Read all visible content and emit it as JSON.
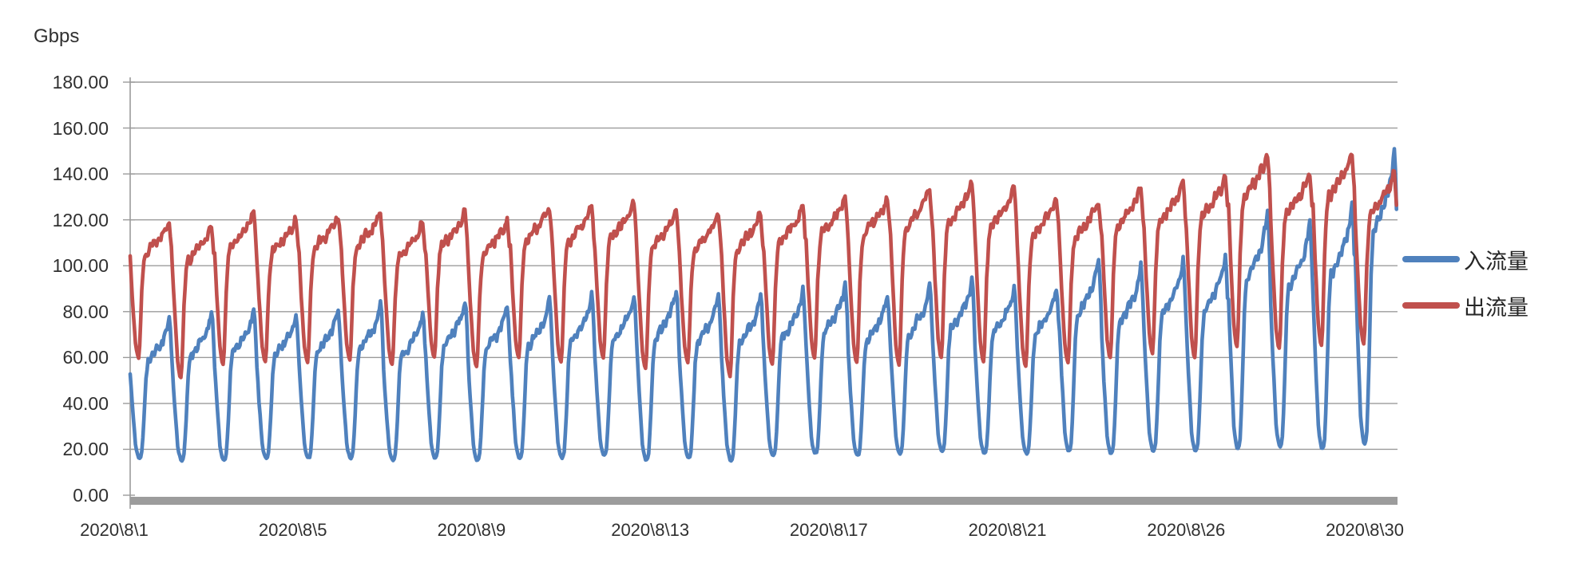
{
  "chart_data": {
    "type": "line",
    "title": "",
    "unit_label": "Gbps",
    "ylabel": "Gbps",
    "xlabel": "",
    "ylim": [
      0,
      180
    ],
    "ytick_step": 20,
    "grid": "horizontal",
    "legend_position": "right",
    "x_range_days": 30,
    "last_day_end_fraction": 0.99,
    "noise_amplitude": 2.2,
    "y_tick_labels": [
      "180.00",
      "160.00",
      "140.00",
      "120.00",
      "100.00",
      "80.00",
      "60.00",
      "40.00",
      "20.00",
      "0.00"
    ],
    "x_tick_labels": [
      "2020\\8\\1",
      "2020\\8\\5",
      "2020\\8\\9",
      "2020\\8\\13",
      "2020\\8\\17",
      "2020\\8\\21",
      "2020\\8\\26",
      "2020\\8\\30"
    ],
    "colors": {
      "gridline": "#9B9B9B",
      "axis": "#9B9B9B",
      "axis_bar": "#9C9C9C",
      "text": "#303030"
    },
    "series": [
      {
        "name": "入流量",
        "color": "#4F81BD",
        "description": "inbound traffic, daily cycle: trough ~15-22 Gbps at night, plateau/peak values below",
        "day_trough": [
          16,
          15,
          15,
          16,
          16,
          16,
          15,
          16,
          15,
          16,
          16,
          17,
          15,
          16,
          15,
          17,
          18,
          17,
          18,
          19,
          18,
          18,
          19,
          18,
          19,
          19,
          20,
          21,
          20,
          22
        ],
        "day_peak": [
          77,
          80,
          82,
          80,
          82,
          84,
          80,
          86,
          84,
          86,
          88,
          88,
          91,
          88,
          88,
          90,
          93,
          88,
          92,
          95,
          92,
          92,
          104,
          100,
          104,
          106,
          125,
          120,
          128,
          153
        ],
        "profile": [
          [
            0,
            0.62
          ],
          [
            0.06,
            0.35
          ],
          [
            0.13,
            0.08
          ],
          [
            0.19,
            0.01
          ],
          [
            0.24,
            0
          ],
          [
            0.28,
            0.05
          ],
          [
            0.33,
            0.3
          ],
          [
            0.38,
            0.6
          ],
          [
            0.43,
            0.72
          ],
          [
            0.48,
            0.7
          ],
          [
            0.53,
            0.76
          ],
          [
            0.58,
            0.74
          ],
          [
            0.63,
            0.8
          ],
          [
            0.68,
            0.78
          ],
          [
            0.73,
            0.84
          ],
          [
            0.78,
            0.83
          ],
          [
            0.83,
            0.89
          ],
          [
            0.88,
            0.92
          ],
          [
            0.93,
            1.0
          ],
          [
            0.96,
            0.88
          ],
          [
            1.0,
            0.62
          ]
        ]
      },
      {
        "name": "出流量",
        "color": "#C0504D",
        "description": "outbound traffic, daily cycle: trough ~50-66 Gbps at night, plateau/peak values below",
        "day_trough": [
          60,
          51,
          57,
          58,
          58,
          59,
          57,
          60,
          56,
          60,
          58,
          60,
          55,
          58,
          52,
          57,
          60,
          58,
          57,
          60,
          58,
          56,
          58,
          60,
          62,
          60,
          65,
          64,
          65,
          66
        ],
        "day_peak": [
          120,
          118,
          124,
          121,
          123,
          124,
          119,
          124,
          121,
          127,
          127,
          128,
          125,
          123,
          124,
          127,
          131,
          131,
          135,
          137,
          135,
          131,
          129,
          135,
          137,
          140,
          150,
          141,
          150,
          141
        ],
        "profile": [
          [
            0,
            0.72
          ],
          [
            0.05,
            0.45
          ],
          [
            0.12,
            0.12
          ],
          [
            0.17,
            0.02
          ],
          [
            0.2,
            0
          ],
          [
            0.23,
            0.1
          ],
          [
            0.27,
            0.45
          ],
          [
            0.32,
            0.68
          ],
          [
            0.37,
            0.78
          ],
          [
            0.42,
            0.75
          ],
          [
            0.47,
            0.82
          ],
          [
            0.52,
            0.79
          ],
          [
            0.57,
            0.85
          ],
          [
            0.62,
            0.82
          ],
          [
            0.67,
            0.88
          ],
          [
            0.72,
            0.86
          ],
          [
            0.77,
            0.92
          ],
          [
            0.82,
            0.9
          ],
          [
            0.87,
            0.96
          ],
          [
            0.92,
            1.0
          ],
          [
            0.95,
            0.9
          ],
          [
            1.0,
            0.72
          ]
        ]
      }
    ]
  }
}
